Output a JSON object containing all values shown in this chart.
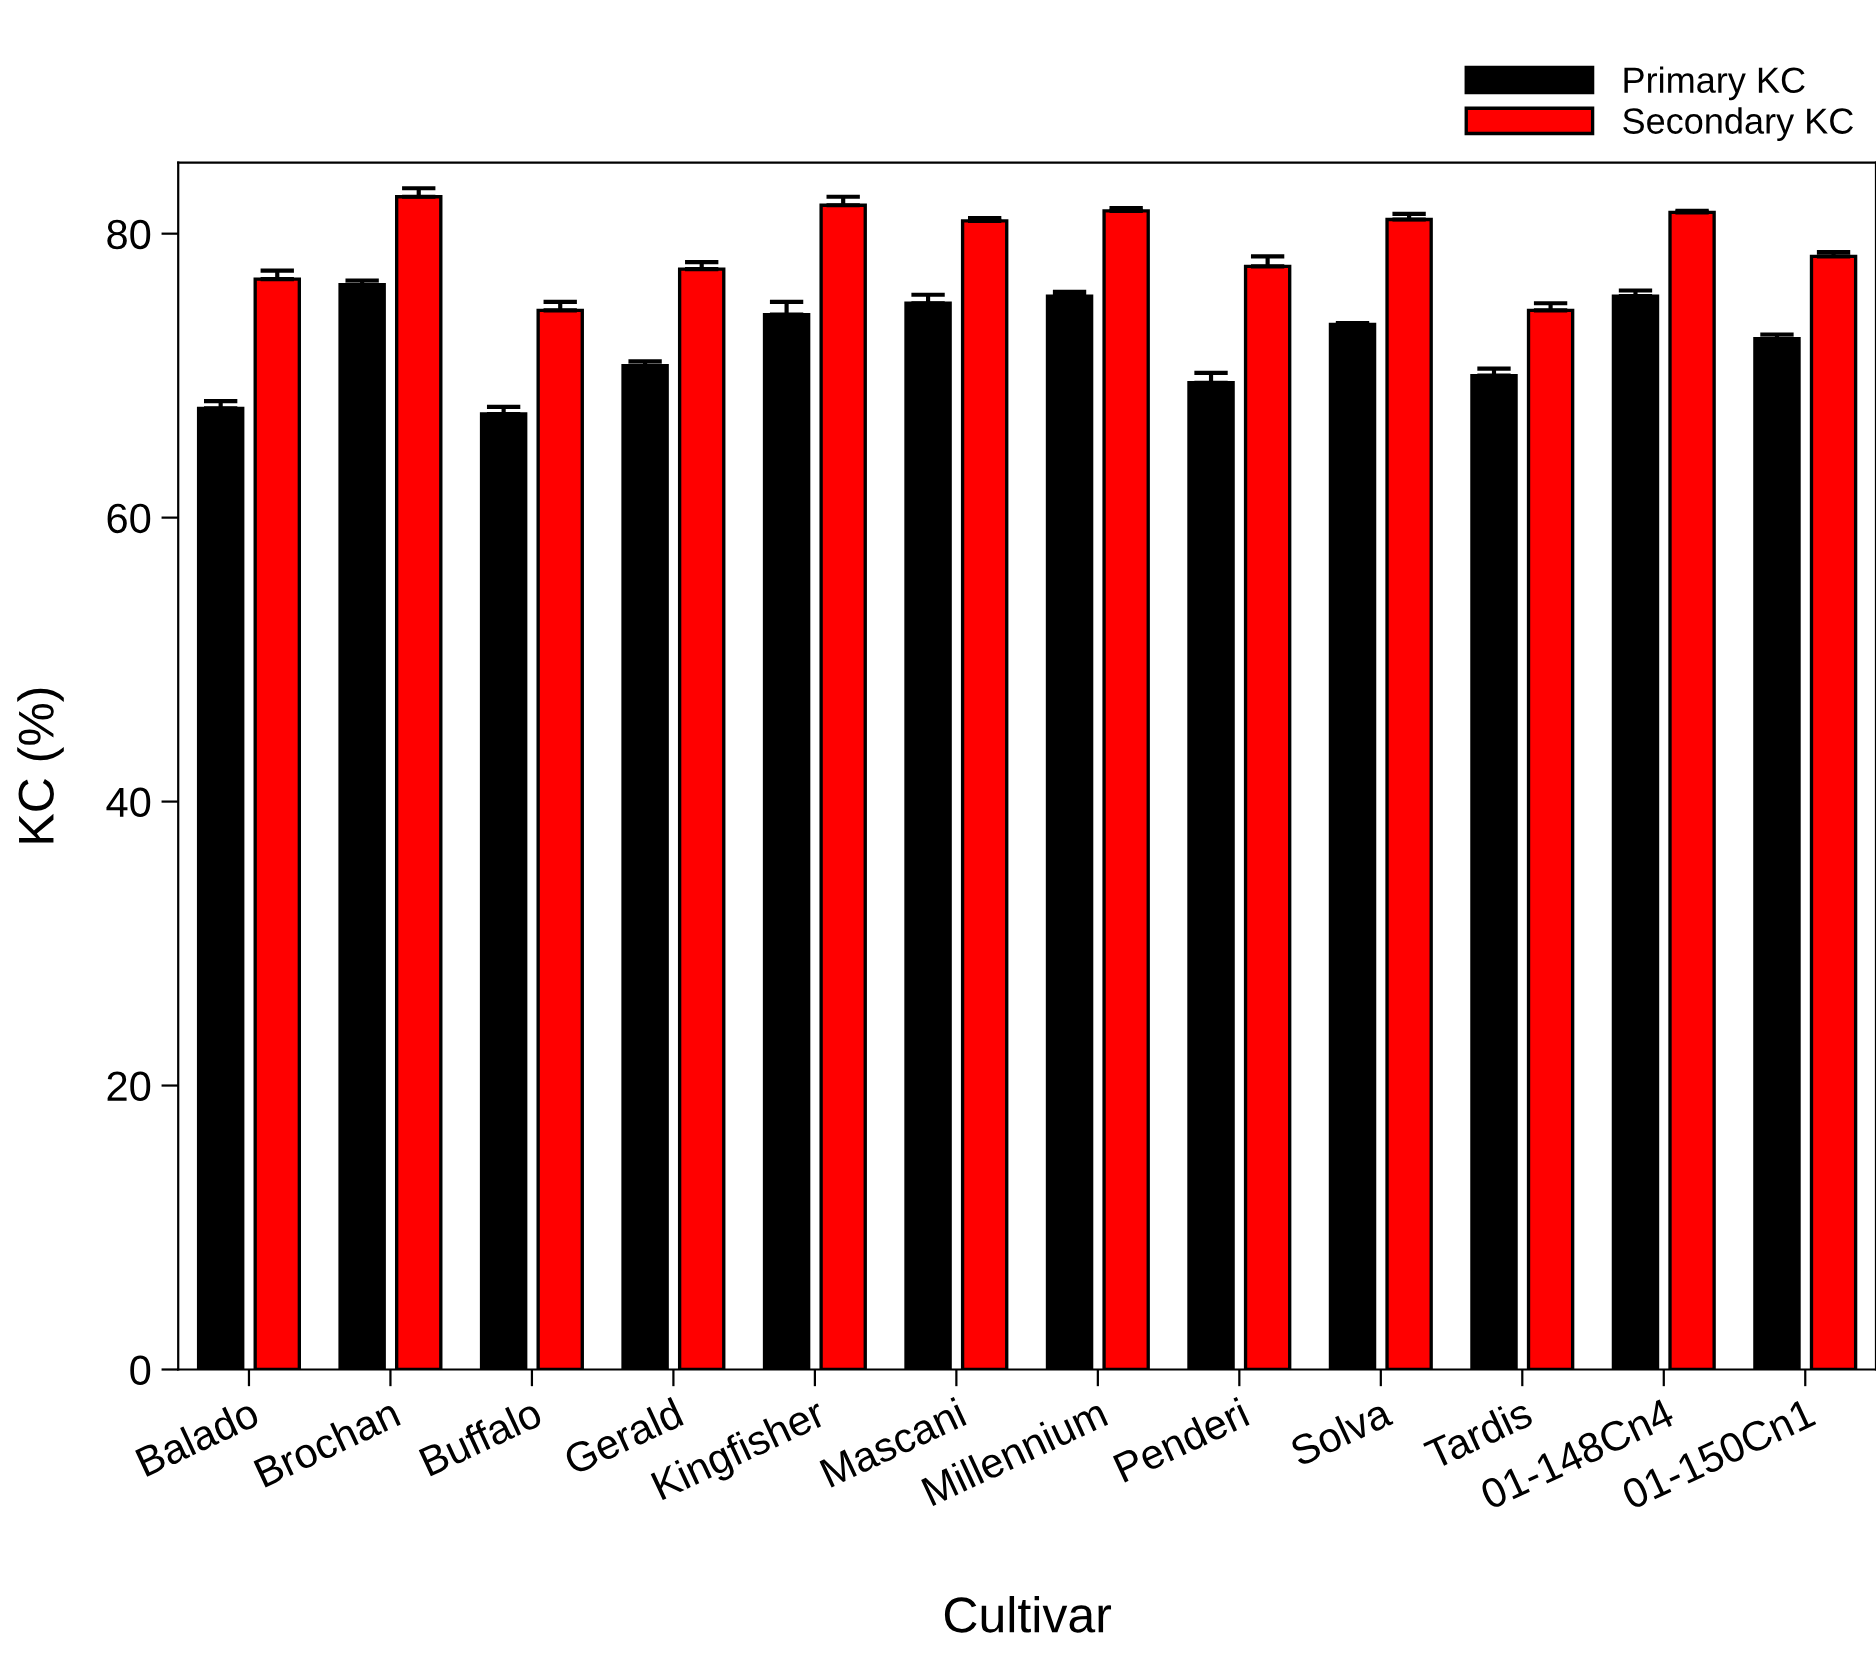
{
  "chart_data": {
    "type": "bar",
    "xlabel": "Cultivar",
    "ylabel": "KC (%)",
    "categories": [
      "Balado",
      "Brochan",
      "Buffalo",
      "Gerald",
      "Kingfisher",
      "Mascani",
      "Millennium",
      "Penderi",
      "Solva",
      "Tardis",
      "01-148Cn4",
      "01-150Cn1"
    ],
    "series": [
      {
        "name": "Primary KC",
        "color": "#000000",
        "values": [
          67.7,
          76.4,
          67.3,
          70.7,
          74.3,
          75.1,
          75.6,
          69.5,
          73.6,
          70.0,
          75.6,
          72.6
        ],
        "errors": [
          [
            67.7,
            68.2
          ],
          [
            76.4,
            76.7
          ],
          [
            67.3,
            67.8
          ],
          [
            70.7,
            71.0
          ],
          [
            74.3,
            75.2
          ],
          [
            75.1,
            75.7
          ],
          [
            75.6,
            75.9
          ],
          [
            69.5,
            70.2
          ],
          [
            73.6,
            73.7
          ],
          [
            70.0,
            70.5
          ],
          [
            75.6,
            76.0
          ],
          [
            72.6,
            72.9
          ]
        ]
      },
      {
        "name": "Secondary KC",
        "color": "#ff0000",
        "values": [
          76.8,
          82.6,
          74.6,
          77.5,
          82.0,
          80.9,
          81.6,
          77.7,
          81.0,
          74.6,
          81.5,
          78.4
        ],
        "errors": [
          [
            76.8,
            77.4
          ],
          [
            82.6,
            83.2
          ],
          [
            74.6,
            75.2
          ],
          [
            77.5,
            78.0
          ],
          [
            82.0,
            82.6
          ],
          [
            80.9,
            81.1
          ],
          [
            81.6,
            81.8
          ],
          [
            77.7,
            78.4
          ],
          [
            81.0,
            81.4
          ],
          [
            74.6,
            75.1
          ],
          [
            81.5,
            81.6
          ],
          [
            78.4,
            78.7
          ]
        ]
      }
    ],
    "ylim": [
      0,
      85
    ],
    "yticks": [
      0,
      20,
      40,
      60,
      80
    ],
    "grid": false,
    "legend": "top right"
  }
}
